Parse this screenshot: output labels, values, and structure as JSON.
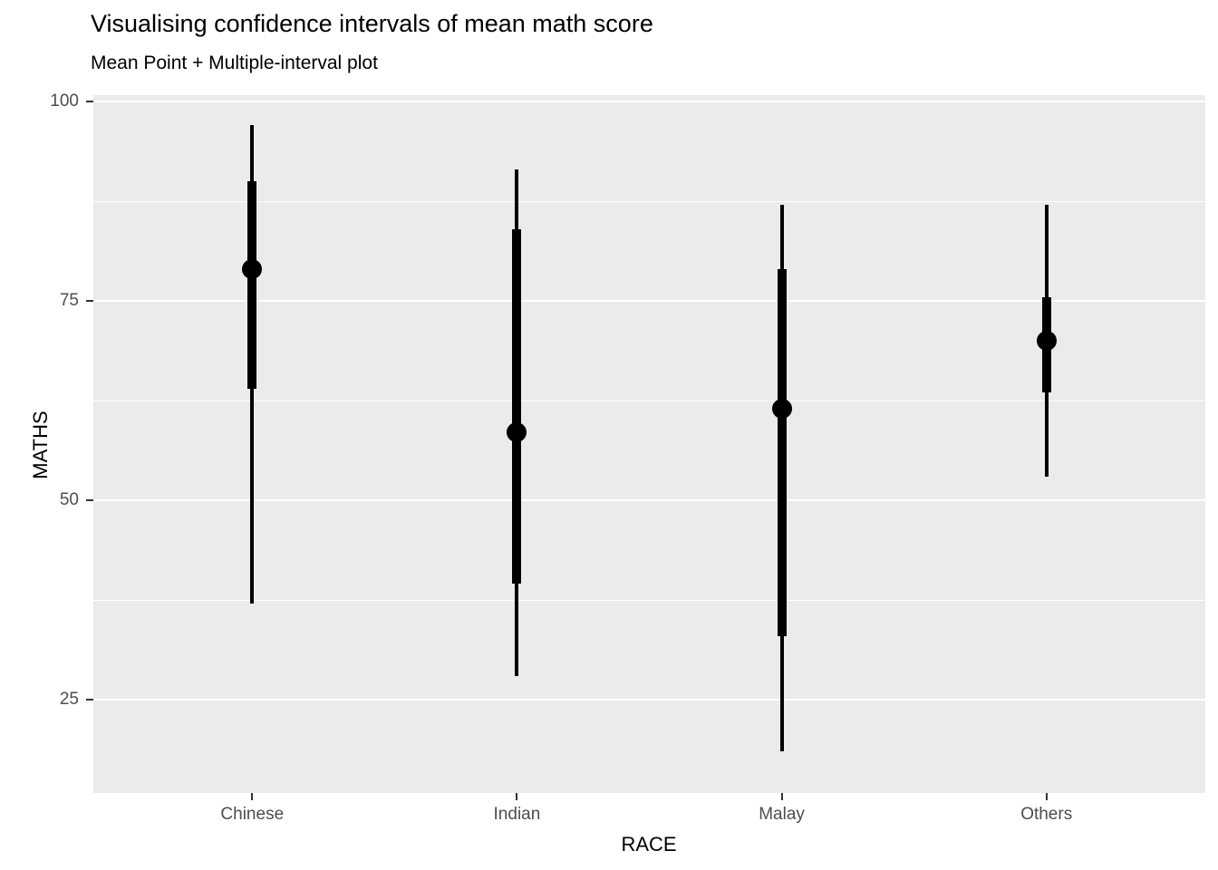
{
  "chart_data": {
    "type": "pointinterval",
    "title": "Visualising confidence intervals of mean math score",
    "subtitle": "Mean Point + Multiple-interval plot",
    "xlabel": "RACE",
    "ylabel": "MATHS",
    "categories": [
      "Chinese",
      "Indian",
      "Malay",
      "Others"
    ],
    "series": [
      {
        "name": "Chinese",
        "mean": 79,
        "inner_interval": [
          64,
          90
        ],
        "outer_interval": [
          37,
          97
        ]
      },
      {
        "name": "Indian",
        "mean": 58.5,
        "inner_interval": [
          39.5,
          84
        ],
        "outer_interval": [
          28,
          91.5
        ]
      },
      {
        "name": "Malay",
        "mean": 61.5,
        "inner_interval": [
          33,
          79
        ],
        "outer_interval": [
          18.5,
          87
        ]
      },
      {
        "name": "Others",
        "mean": 70,
        "inner_interval": [
          63.5,
          75.5
        ],
        "outer_interval": [
          53,
          87
        ]
      }
    ],
    "y_ticks": [
      25,
      50,
      75,
      100
    ],
    "y_minor_gridlines": [
      37.5,
      62.5,
      87.5
    ],
    "ylim": [
      13.3,
      100.8
    ],
    "grid": true,
    "legend": "none",
    "colors": {
      "figure_background": "#FFFFFF",
      "panel_background": "#EBEBEB",
      "gridline": "#FFFFFF",
      "data": "#000000",
      "tick_label": "#4D4D4D",
      "tick_mark": "#333333",
      "text": "#000000"
    }
  }
}
